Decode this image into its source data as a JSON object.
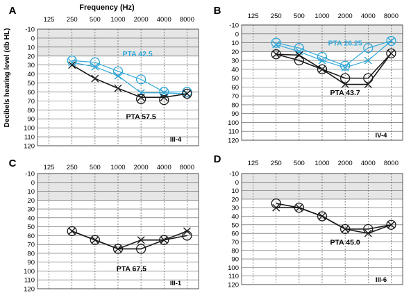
{
  "figure": {
    "x_axis_title": "Frequency (Hz)",
    "y_axis_title": "Decibels hearing level (db HL)"
  },
  "chart_data": [
    {
      "type": "line",
      "panel": "A",
      "subject": "III-4",
      "x": [
        125,
        250,
        500,
        1000,
        2000,
        4000,
        8000
      ],
      "xscale": "log2",
      "ylim": [
        -10,
        120
      ],
      "yreversed": true,
      "normal_range": [
        -10,
        20
      ],
      "grid": true,
      "series": [
        {
          "name": "",
          "role": "bone",
          "color": "#2fa8d8",
          "x": [
            250,
            500,
            1000,
            2000,
            4000,
            8000
          ],
          "o": [
            25,
            27,
            37,
            46,
            60,
            60
          ],
          "x_marks": [
            27,
            32,
            42,
            61,
            61,
            62
          ]
        },
        {
          "name": "",
          "role": "air",
          "color": "#1a1a1a",
          "x": [
            250,
            500,
            1000,
            2000,
            4000,
            8000
          ],
          "o": [
            null,
            null,
            null,
            68,
            69,
            62
          ],
          "x_marks": [
            30,
            45,
            56,
            66,
            66,
            62
          ]
        }
      ],
      "annotations": [
        {
          "text": "PTA 42.5",
          "color": "#2fa8d8",
          "x": 1800,
          "y": 17
        },
        {
          "text": "PTA 57.5",
          "color": "#000000",
          "x": 2000,
          "y": 87
        }
      ]
    },
    {
      "type": "line",
      "panel": "B",
      "subject": "IV-4",
      "x": [
        125,
        250,
        500,
        1000,
        2000,
        4000,
        8000
      ],
      "xscale": "log2",
      "ylim": [
        -10,
        120
      ],
      "yreversed": true,
      "normal_range": [
        -10,
        20
      ],
      "grid": true,
      "series": [
        {
          "name": "",
          "role": "bone",
          "color": "#2fa8d8",
          "x": [
            250,
            500,
            1000,
            2000,
            4000,
            8000
          ],
          "o": [
            10,
            16,
            26,
            36,
            16,
            8
          ],
          "x_marks": [
            12,
            20,
            30,
            38,
            30,
            8
          ]
        },
        {
          "name": "",
          "role": "air",
          "color": "#1a1a1a",
          "x": [
            250,
            500,
            1000,
            2000,
            4000,
            8000
          ],
          "o": [
            23,
            30,
            40,
            50,
            50,
            22
          ],
          "x_marks": [
            23,
            24,
            40,
            57,
            57,
            22
          ]
        }
      ],
      "annotations": [
        {
          "text": "PTA 26.25",
          "color": "#2fa8d8",
          "x": 2000,
          "y": 10
        },
        {
          "text": "PTA 43.7",
          "color": "#000000",
          "x": 2000,
          "y": 66
        }
      ]
    },
    {
      "type": "line",
      "panel": "C",
      "subject": "III-1",
      "x": [
        125,
        250,
        500,
        1000,
        2000,
        4000,
        8000
      ],
      "xscale": "log2",
      "ylim": [
        -10,
        120
      ],
      "yreversed": true,
      "normal_range": [
        -10,
        20
      ],
      "grid": true,
      "series": [
        {
          "name": "",
          "role": "air",
          "color": "#1a1a1a",
          "x": [
            250,
            500,
            1000,
            2000,
            4000,
            8000
          ],
          "o": [
            55,
            65,
            75,
            75,
            65,
            60
          ],
          "x_marks": [
            55,
            65,
            75,
            65,
            65,
            55
          ]
        }
      ],
      "annotations": [
        {
          "text": "PTA 67.5",
          "color": "#000000",
          "x": 1500,
          "y": 97
        }
      ]
    },
    {
      "type": "line",
      "panel": "D",
      "subject": "III-6",
      "x": [
        125,
        250,
        500,
        1000,
        2000,
        4000,
        8000
      ],
      "xscale": "log2",
      "ylim": [
        -10,
        120
      ],
      "yreversed": true,
      "normal_range": [
        -10,
        20
      ],
      "grid": true,
      "series": [
        {
          "name": "",
          "role": "air",
          "color": "#1a1a1a",
          "x": [
            250,
            500,
            1000,
            2000,
            4000,
            8000
          ],
          "o": [
            25,
            30,
            40,
            55,
            55,
            50
          ],
          "x_marks": [
            30,
            30,
            40,
            55,
            60,
            50
          ]
        }
      ],
      "annotations": [
        {
          "text": "PTA 45.0",
          "color": "#000000",
          "x": 2000,
          "y": 70
        }
      ]
    }
  ]
}
